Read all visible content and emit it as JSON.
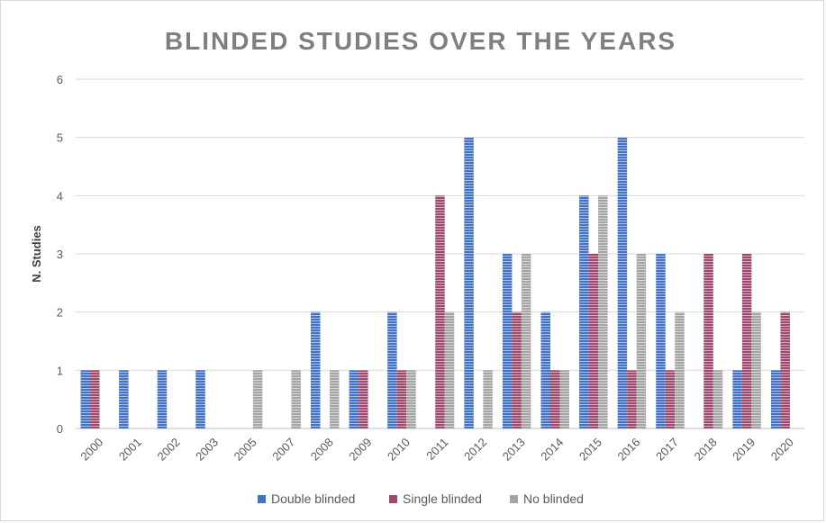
{
  "chart_data": {
    "type": "bar",
    "title": "BLINDED STUDIES OVER THE YEARS",
    "xlabel": "",
    "ylabel": "N. Studies",
    "ylim": [
      0,
      6
    ],
    "yticks": [
      0,
      1,
      2,
      3,
      4,
      5,
      6
    ],
    "grid": true,
    "legend_position": "bottom",
    "categories": [
      "2000",
      "2001",
      "2002",
      "2003",
      "2005",
      "2007",
      "2008",
      "2009",
      "2010",
      "2011",
      "2012",
      "2013",
      "2014",
      "2015",
      "2016",
      "2017",
      "2018",
      "2019",
      "2020"
    ],
    "series": [
      {
        "name": "Double blinded",
        "color": "#4472c4",
        "values": [
          1,
          1,
          1,
          1,
          0,
          0,
          2,
          1,
          2,
          0,
          5,
          3,
          2,
          4,
          5,
          3,
          0,
          1,
          1
        ]
      },
      {
        "name": "Single blinded",
        "color": "#9e4a6e",
        "values": [
          1,
          0,
          0,
          0,
          0,
          0,
          0,
          1,
          1,
          4,
          0,
          2,
          1,
          3,
          1,
          1,
          3,
          3,
          2
        ]
      },
      {
        "name": "No blinded",
        "color": "#a5a5a5",
        "values": [
          0,
          0,
          0,
          0,
          1,
          1,
          1,
          0,
          1,
          2,
          1,
          3,
          1,
          4,
          3,
          2,
          1,
          2,
          0
        ]
      }
    ]
  }
}
